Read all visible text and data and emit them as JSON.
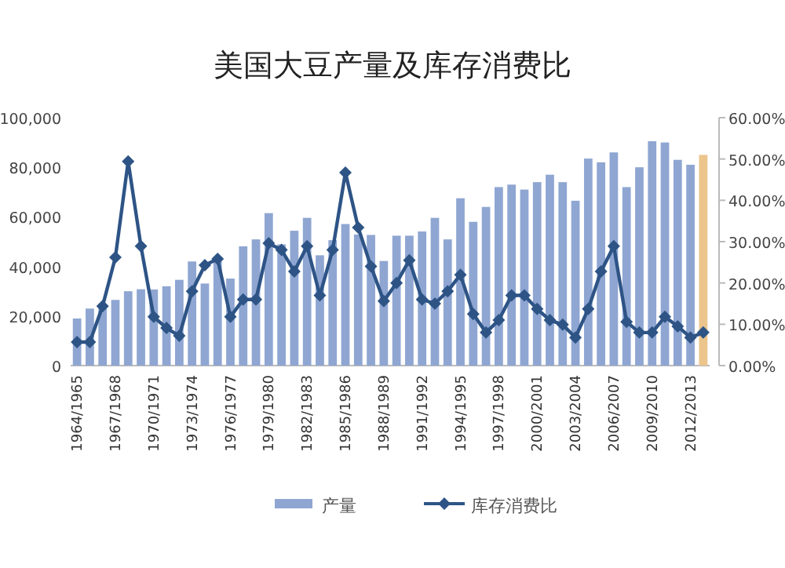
{
  "chart_data": {
    "type": "bar",
    "title": "美国大豆产量及库存消费比",
    "categories": [
      "1964/1965",
      null,
      null,
      "1967/1968",
      null,
      null,
      "1970/1971",
      null,
      null,
      "1973/1974",
      null,
      null,
      "1976/1977",
      null,
      null,
      "1979/1980",
      null,
      null,
      "1982/1983",
      null,
      null,
      "1985/1986",
      null,
      null,
      "1988/1989",
      null,
      null,
      "1991/1992",
      null,
      null,
      "1994/1995",
      null,
      null,
      "1997/1998",
      null,
      null,
      "2000/2001",
      null,
      null,
      "2003/2004",
      null,
      null,
      "2006/2007",
      null,
      null,
      "2009/2010",
      null,
      null,
      "2012/2013",
      null
    ],
    "series": [
      {
        "name": "产量",
        "color": "#8fa6d2",
        "colors": [
          "#8fa6d2",
          "#8fa6d2",
          "#8fa6d2",
          "#8fa6d2",
          "#8fa6d2",
          "#8fa6d2",
          "#8fa6d2",
          "#8fa6d2",
          "#8fa6d2",
          "#8fa6d2",
          "#8fa6d2",
          "#8fa6d2",
          "#8fa6d2",
          "#8fa6d2",
          "#8fa6d2",
          "#8fa6d2",
          "#8fa6d2",
          "#8fa6d2",
          "#8fa6d2",
          "#8fa6d2",
          "#8fa6d2",
          "#8fa6d2",
          "#8fa6d2",
          "#8fa6d2",
          "#8fa6d2",
          "#8fa6d2",
          "#8fa6d2",
          "#8fa6d2",
          "#8fa6d2",
          "#8fa6d2",
          "#8fa6d2",
          "#8fa6d2",
          "#8fa6d2",
          "#8fa6d2",
          "#8fa6d2",
          "#8fa6d2",
          "#8fa6d2",
          "#8fa6d2",
          "#8fa6d2",
          "#8fa6d2",
          "#8fa6d2",
          "#8fa6d2",
          "#8fa6d2",
          "#8fa6d2",
          "#8fa6d2",
          "#8fa6d2",
          "#8fa6d2",
          "#8fa6d2",
          "#8fa6d2",
          "#ebc58c"
        ],
        "values": [
          19000,
          23000,
          25000,
          26500,
          30000,
          30800,
          30700,
          32000,
          34600,
          42000,
          33100,
          42100,
          35100,
          48100,
          50900,
          61500,
          48900,
          54400,
          59600,
          44500,
          50600,
          57100,
          52900,
          52700,
          42200,
          52400,
          52400,
          54100,
          59600,
          50900,
          67500,
          58000,
          64000,
          72000,
          73000,
          71000,
          74000,
          77000,
          74000,
          66500,
          83500,
          82000,
          86000,
          72000,
          80000,
          90500,
          90000,
          83000,
          81000,
          85000
        ]
      },
      {
        "name": "库存消费比",
        "type": "line",
        "axis": "y2",
        "color": "#2e5486",
        "values": [
          5.7,
          5.7,
          14.4,
          26.2,
          49.4,
          28.9,
          11.8,
          9.1,
          7.2,
          18,
          24.3,
          25.8,
          11.8,
          16,
          16,
          29.6,
          28,
          22.8,
          28.9,
          17,
          28,
          46.7,
          33.4,
          24,
          15.6,
          20,
          25.5,
          16,
          15,
          18,
          22,
          12.5,
          8,
          11,
          17,
          17,
          13.7,
          11,
          9.9,
          6.8,
          13.7,
          22.8,
          28.9,
          10.6,
          8,
          8,
          11.8,
          9.5,
          6.8,
          8
        ]
      }
    ],
    "ylim": [
      0,
      100000
    ],
    "yticks": [
      0,
      {
        "value": 20000,
        "label": "20,000"
      },
      {
        "value": 40000,
        "label": "40,000"
      },
      {
        "value": 60000,
        "label": "60,000"
      },
      {
        "value": 80000,
        "label": "80,000"
      },
      {
        "value": 100000,
        "label": "100,000"
      }
    ],
    "y2lim": [
      0,
      60
    ],
    "y2ticks": [
      {
        "value": 0,
        "label": "0.00%"
      },
      {
        "value": 10,
        "label": "10.00%"
      },
      {
        "value": 20,
        "label": "20.00%"
      },
      {
        "value": 30,
        "label": "30.00%"
      },
      {
        "value": 40,
        "label": "40.00%"
      },
      {
        "value": 50,
        "label": "50.00%"
      },
      {
        "value": 60,
        "label": "60.00%"
      }
    ],
    "marker": "diamond",
    "legend": "bottom",
    "grid": false
  }
}
